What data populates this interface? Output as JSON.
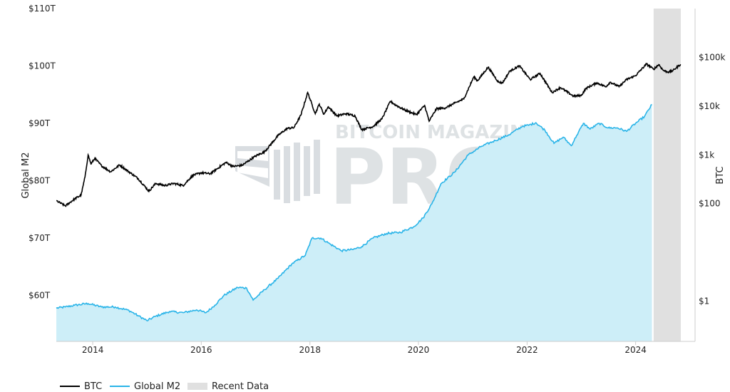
{
  "chart_data": {
    "type": "line",
    "title": "",
    "watermark": {
      "top": "BITCOIN MAGAZINE",
      "main": "PRO",
      "mark": "®"
    },
    "left_axis": {
      "label": "Global M2",
      "scale": "linear",
      "range": [
        52,
        110
      ],
      "ticks": [
        {
          "value": 60,
          "label": "$60T"
        },
        {
          "value": 70,
          "label": "$70T"
        },
        {
          "value": 80,
          "label": "$80T"
        },
        {
          "value": 90,
          "label": "$90T"
        },
        {
          "value": 100,
          "label": "$100T"
        },
        {
          "value": 110,
          "label": "$110T"
        }
      ]
    },
    "right_axis": {
      "label": "BTC",
      "scale": "log",
      "range": [
        0.15,
        1000000
      ],
      "ticks": [
        {
          "value": 1,
          "label": "$1"
        },
        {
          "value": 100,
          "label": "$100"
        },
        {
          "value": 1000,
          "label": "$1k"
        },
        {
          "value": 10000,
          "label": "$10k"
        },
        {
          "value": 100000,
          "label": "$100k"
        }
      ]
    },
    "x_axis": {
      "range": [
        "2013-05-01",
        "2024-10-31"
      ],
      "ticks": [
        {
          "value": "2014-01-01",
          "label": "2014"
        },
        {
          "value": "2016-01-01",
          "label": "2016"
        },
        {
          "value": "2018-01-01",
          "label": "2018"
        },
        {
          "value": "2020-01-01",
          "label": "2020"
        },
        {
          "value": "2022-01-01",
          "label": "2022"
        },
        {
          "value": "2024-01-01",
          "label": "2024"
        }
      ]
    },
    "recent_data_range": [
      "2024-05-01",
      "2024-10-31"
    ],
    "series": [
      {
        "name": "BTC",
        "axis": "right",
        "color": "#000000",
        "points": [
          [
            "2013-05-01",
            115
          ],
          [
            "2013-07-01",
            90
          ],
          [
            "2013-09-01",
            125
          ],
          [
            "2013-10-15",
            150
          ],
          [
            "2013-11-10",
            350
          ],
          [
            "2013-12-01",
            1000
          ],
          [
            "2013-12-20",
            650
          ],
          [
            "2014-01-15",
            850
          ],
          [
            "2014-03-01",
            600
          ],
          [
            "2014-05-01",
            450
          ],
          [
            "2014-07-01",
            620
          ],
          [
            "2014-09-15",
            420
          ],
          [
            "2014-11-01",
            330
          ],
          [
            "2015-01-14",
            180
          ],
          [
            "2015-03-01",
            260
          ],
          [
            "2015-05-01",
            235
          ],
          [
            "2015-07-01",
            260
          ],
          [
            "2015-09-01",
            235
          ],
          [
            "2015-11-05",
            380
          ],
          [
            "2016-01-01",
            430
          ],
          [
            "2016-03-01",
            410
          ],
          [
            "2016-06-15",
            700
          ],
          [
            "2016-08-01",
            580
          ],
          [
            "2016-10-01",
            610
          ],
          [
            "2017-01-01",
            950
          ],
          [
            "2017-03-01",
            1150
          ],
          [
            "2017-06-01",
            2500
          ],
          [
            "2017-08-01",
            3500
          ],
          [
            "2017-09-15",
            3600
          ],
          [
            "2017-11-01",
            6500
          ],
          [
            "2017-12-17",
            19000
          ],
          [
            "2018-02-06",
            7000
          ],
          [
            "2018-03-05",
            11000
          ],
          [
            "2018-04-05",
            6800
          ],
          [
            "2018-05-05",
            9700
          ],
          [
            "2018-07-01",
            6300
          ],
          [
            "2018-09-01",
            7000
          ],
          [
            "2018-11-01",
            6300
          ],
          [
            "2018-12-15",
            3300
          ],
          [
            "2019-03-01",
            3800
          ],
          [
            "2019-05-01",
            5500
          ],
          [
            "2019-06-26",
            12500
          ],
          [
            "2019-08-01",
            10500
          ],
          [
            "2019-10-01",
            8300
          ],
          [
            "2019-12-18",
            6700
          ],
          [
            "2020-02-12",
            10300
          ],
          [
            "2020-03-13",
            4900
          ],
          [
            "2020-05-01",
            8800
          ],
          [
            "2020-07-01",
            9200
          ],
          [
            "2020-09-01",
            11500
          ],
          [
            "2020-11-01",
            14000
          ],
          [
            "2021-01-08",
            40000
          ],
          [
            "2021-02-01",
            33000
          ],
          [
            "2021-04-14",
            63000
          ],
          [
            "2021-06-22",
            31000
          ],
          [
            "2021-07-20",
            30000
          ],
          [
            "2021-09-06",
            52000
          ],
          [
            "2021-11-10",
            67000
          ],
          [
            "2022-01-22",
            35000
          ],
          [
            "2022-03-29",
            47000
          ],
          [
            "2022-06-18",
            19000
          ],
          [
            "2022-08-14",
            24000
          ],
          [
            "2022-11-09",
            16000
          ],
          [
            "2022-12-31",
            16500
          ],
          [
            "2023-02-01",
            23000
          ],
          [
            "2023-04-14",
            30000
          ],
          [
            "2023-06-15",
            25000
          ],
          [
            "2023-07-14",
            31000
          ],
          [
            "2023-09-11",
            25000
          ],
          [
            "2023-11-01",
            35000
          ],
          [
            "2023-12-31",
            42000
          ],
          [
            "2024-03-14",
            73000
          ],
          [
            "2024-05-01",
            57000
          ],
          [
            "2024-06-05",
            71000
          ],
          [
            "2024-07-05",
            54000
          ],
          [
            "2024-08-05",
            50000
          ],
          [
            "2024-09-06",
            53000
          ],
          [
            "2024-10-29",
            72000
          ]
        ]
      },
      {
        "name": "Global M2",
        "axis": "left",
        "color": "#2ab4e8",
        "fill": "#cdeef8",
        "points": [
          [
            "2013-05-01",
            57.8
          ],
          [
            "2013-07-01",
            58.0
          ],
          [
            "2013-09-01",
            58.3
          ],
          [
            "2013-12-01",
            58.6
          ],
          [
            "2014-03-01",
            58.0
          ],
          [
            "2014-06-01",
            58.0
          ],
          [
            "2014-09-01",
            57.4
          ],
          [
            "2014-11-01",
            56.5
          ],
          [
            "2015-01-01",
            55.6
          ],
          [
            "2015-03-01",
            56.4
          ],
          [
            "2015-06-01",
            57.2
          ],
          [
            "2015-09-01",
            57.0
          ],
          [
            "2015-12-01",
            57.5
          ],
          [
            "2016-02-01",
            57.0
          ],
          [
            "2016-04-01",
            58.3
          ],
          [
            "2016-06-01",
            60.0
          ],
          [
            "2016-09-01",
            61.4
          ],
          [
            "2016-11-01",
            61.3
          ],
          [
            "2016-12-15",
            59.2
          ],
          [
            "2017-03-01",
            61.0
          ],
          [
            "2017-06-01",
            63.0
          ],
          [
            "2017-09-01",
            65.5
          ],
          [
            "2017-12-01",
            67.0
          ],
          [
            "2018-01-15",
            70.0
          ],
          [
            "2018-03-15",
            70.0
          ],
          [
            "2018-05-15",
            69.0
          ],
          [
            "2018-08-01",
            67.8
          ],
          [
            "2018-10-15",
            68.0
          ],
          [
            "2018-12-15",
            68.5
          ],
          [
            "2019-03-01",
            70.0
          ],
          [
            "2019-06-01",
            70.8
          ],
          [
            "2019-09-01",
            71.0
          ],
          [
            "2019-12-01",
            72.0
          ],
          [
            "2020-02-01",
            73.5
          ],
          [
            "2020-04-01",
            76.0
          ],
          [
            "2020-06-01",
            79.5
          ],
          [
            "2020-09-01",
            81.5
          ],
          [
            "2020-12-01",
            84.5
          ],
          [
            "2021-03-01",
            86.0
          ],
          [
            "2021-06-01",
            87.0
          ],
          [
            "2021-09-01",
            88.0
          ],
          [
            "2021-12-01",
            89.5
          ],
          [
            "2022-01-15",
            89.7
          ],
          [
            "2022-03-01",
            90.1
          ],
          [
            "2022-05-01",
            88.8
          ],
          [
            "2022-07-01",
            86.5
          ],
          [
            "2022-09-01",
            87.6
          ],
          [
            "2022-10-25",
            86.1
          ],
          [
            "2022-12-01",
            87.9
          ],
          [
            "2023-01-15",
            90.0
          ],
          [
            "2023-03-01",
            89.0
          ],
          [
            "2023-05-01",
            90.0
          ],
          [
            "2023-07-01",
            89.2
          ],
          [
            "2023-09-01",
            89.2
          ],
          [
            "2023-11-01",
            88.6
          ],
          [
            "2024-01-01",
            90.0
          ],
          [
            "2024-03-01",
            91.2
          ],
          [
            "2024-04-20",
            93.3
          ]
        ]
      }
    ],
    "legend": {
      "position": "bottom-left",
      "items": [
        {
          "label": "BTC",
          "color": "#000000",
          "kind": "line"
        },
        {
          "label": "Global M2",
          "color": "#2ab4e8",
          "kind": "line"
        },
        {
          "label": "Recent Data",
          "color": "#e0e0e0",
          "kind": "box"
        }
      ]
    },
    "grid": false
  }
}
